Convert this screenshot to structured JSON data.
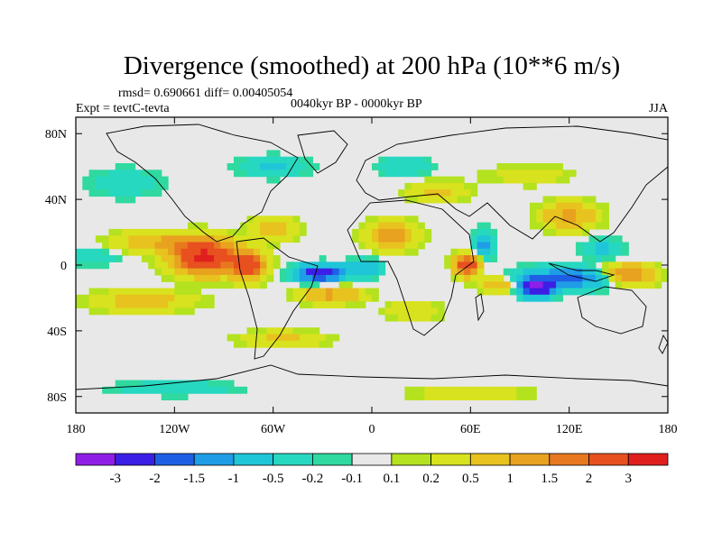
{
  "title": "Divergence (smoothed) at 200 hPa (10**6 m/s)",
  "stats_line": "rmsd= 0.690661  diff= 0.00405054",
  "experiment": "Expt = tevtC-tevta",
  "period": "0040kyr BP - 0000kyr BP",
  "season": "JJA",
  "map": {
    "projection": "cylindrical equidistant",
    "lon_range": [
      -180,
      180
    ],
    "lat_range": [
      -90,
      90
    ],
    "x_ticks": [
      {
        "value": -180,
        "label": "180"
      },
      {
        "value": -120,
        "label": "120W"
      },
      {
        "value": -60,
        "label": "60W"
      },
      {
        "value": 0,
        "label": "0"
      },
      {
        "value": 60,
        "label": "60E"
      },
      {
        "value": 120,
        "label": "120E"
      },
      {
        "value": 180,
        "label": "180"
      }
    ],
    "y_ticks": [
      {
        "value": 80,
        "label": "80N"
      },
      {
        "value": 40,
        "label": "40N"
      },
      {
        "value": 0,
        "label": "0"
      },
      {
        "value": -40,
        "label": "40S"
      },
      {
        "value": -80,
        "label": "80S"
      }
    ],
    "fields": [
      {
        "lon": -102,
        "lat": 5,
        "value": 3.2,
        "slon": 18,
        "slat": 10
      },
      {
        "lon": -75,
        "lat": 0,
        "value": 2.5,
        "slon": 10,
        "slat": 8
      },
      {
        "lon": -130,
        "lat": 14,
        "value": 1.0,
        "slon": 26,
        "slat": 6
      },
      {
        "lon": -140,
        "lat": -22,
        "value": 0.8,
        "slon": 30,
        "slat": 6
      },
      {
        "lon": -60,
        "lat": 22,
        "value": 0.7,
        "slon": 14,
        "slat": 7
      },
      {
        "lon": -32,
        "lat": -5,
        "value": -2.6,
        "slon": 14,
        "slat": 5
      },
      {
        "lon": -5,
        "lat": -2,
        "value": -1.0,
        "slon": 10,
        "slat": 5
      },
      {
        "lon": -25,
        "lat": -18,
        "value": 1.2,
        "slon": 18,
        "slat": 5
      },
      {
        "lon": -55,
        "lat": -45,
        "value": 0.6,
        "slon": 25,
        "slat": 5
      },
      {
        "lon": 12,
        "lat": 18,
        "value": 1.3,
        "slon": 14,
        "slat": 8
      },
      {
        "lon": 58,
        "lat": 0,
        "value": 3.0,
        "slon": 7,
        "slat": 6
      },
      {
        "lon": 68,
        "lat": 12,
        "value": -1.2,
        "slon": 6,
        "slat": 8
      },
      {
        "lon": 78,
        "lat": -12,
        "value": 1.0,
        "slon": 12,
        "slat": 5
      },
      {
        "lon": 100,
        "lat": -14,
        "value": -3.2,
        "slon": 10,
        "slat": 5
      },
      {
        "lon": 120,
        "lat": -8,
        "value": -1.8,
        "slon": 30,
        "slat": 6
      },
      {
        "lon": 155,
        "lat": -6,
        "value": 1.8,
        "slon": 16,
        "slat": 6
      },
      {
        "lon": 120,
        "lat": 30,
        "value": 1.2,
        "slon": 16,
        "slat": 8
      },
      {
        "lon": 140,
        "lat": 10,
        "value": -0.6,
        "slon": 12,
        "slat": 6
      },
      {
        "lon": 25,
        "lat": -28,
        "value": 0.5,
        "slon": 16,
        "slat": 6
      },
      {
        "lon": 40,
        "lat": 45,
        "value": 0.6,
        "slon": 18,
        "slat": 6
      },
      {
        "lon": 95,
        "lat": 55,
        "value": 0.4,
        "slon": 25,
        "slat": 6
      },
      {
        "lon": -150,
        "lat": 50,
        "value": -0.5,
        "slon": 20,
        "slat": 8
      },
      {
        "lon": -60,
        "lat": 60,
        "value": -0.6,
        "slon": 20,
        "slat": 6
      },
      {
        "lon": 20,
        "lat": 60,
        "value": -0.5,
        "slon": 15,
        "slat": 6
      },
      {
        "lon": -120,
        "lat": -75,
        "value": -0.5,
        "slon": 35,
        "slat": 4
      },
      {
        "lon": 60,
        "lat": -78,
        "value": 0.5,
        "slon": 35,
        "slat": 4
      },
      {
        "lon": -170,
        "lat": 5,
        "value": -0.5,
        "slon": 14,
        "slat": 5
      }
    ]
  },
  "colorbar": {
    "colors": [
      "#8f1fe6",
      "#3c1fe6",
      "#1f5fe6",
      "#1f9de6",
      "#1fc6d8",
      "#27d8c0",
      "#2fd9a0",
      "#e8e8e8",
      "#b4e21f",
      "#d8e21f",
      "#e8c21f",
      "#e8a21f",
      "#e8781f",
      "#e8501f",
      "#e0201f"
    ],
    "labels": [
      "-3",
      "-2",
      "-1.5",
      "-1",
      "-0.5",
      "-0.2",
      "-0.1",
      "0.1",
      "0.2",
      "0.5",
      "1",
      "1.5",
      "2",
      "3"
    ],
    "thresholds": [
      -3,
      -2,
      -1.5,
      -1,
      -0.5,
      -0.2,
      -0.1,
      0.1,
      0.2,
      0.5,
      1,
      1.5,
      2,
      3
    ]
  }
}
